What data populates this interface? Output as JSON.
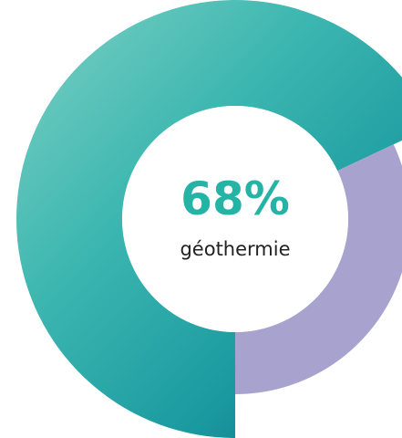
{
  "chart_data": {
    "type": "donut",
    "categories": [
      "géothermie",
      null
    ],
    "values": [
      68,
      32
    ],
    "value_labels": [
      "68%",
      null
    ],
    "colors": [
      "#2aa9a6",
      "#a8a2cf"
    ]
  }
}
